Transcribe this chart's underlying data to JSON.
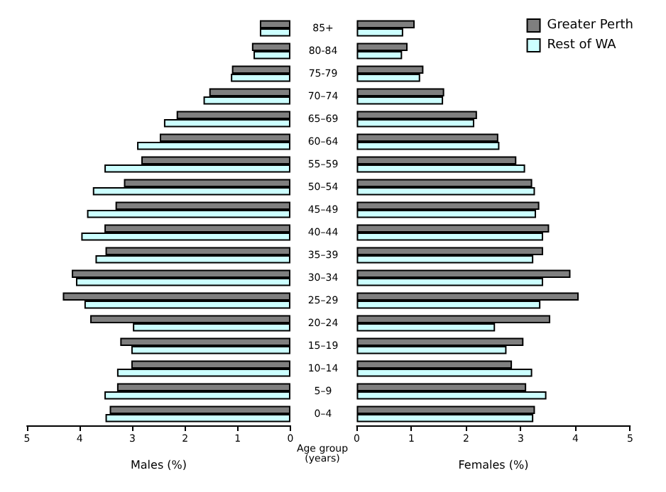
{
  "chart_data": [
    {
      "type": "bar",
      "orientation": "horizontal",
      "xlabel": "Males (%)",
      "ylabel": "Age group\n(years)",
      "categories": [
        "85+",
        "80-84",
        "75-79",
        "70–74",
        "65–69",
        "60–64",
        "55–59",
        "50–54",
        "45–49",
        "40–44",
        "35–39",
        "30–34",
        "25–29",
        "20–24",
        "15–19",
        "10–14",
        "5–9",
        "0–4"
      ],
      "series": [
        {
          "color": "#7f7f7f",
          "values": [
            0.58,
            0.73,
            1.11,
            1.54,
            2.16,
            2.48,
            2.83,
            3.16,
            3.32,
            3.53,
            3.51,
            4.15,
            4.32,
            3.8,
            3.23,
            3.02,
            3.29,
            3.43
          ]
        },
        {
          "color": "#ccffff",
          "values": [
            0.58,
            0.7,
            1.13,
            1.65,
            2.4,
            2.91,
            3.53,
            3.75,
            3.86,
            3.97,
            3.7,
            4.07,
            3.91,
            2.99,
            3.02,
            3.29,
            3.53,
            3.51
          ]
        }
      ],
      "xlim": [
        5,
        0
      ],
      "xticks": [
        5,
        4,
        3,
        2,
        1,
        0
      ],
      "grid": false,
      "legend": false
    },
    {
      "type": "bar",
      "orientation": "horizontal",
      "xlabel": "Females (%)",
      "categories": [
        null,
        null,
        null,
        null,
        null,
        null,
        null,
        null,
        null,
        null,
        null,
        null,
        null,
        null,
        null,
        null,
        null,
        null
      ],
      "series": [
        {
          "name": "Greater Perth",
          "color": "#7f7f7f",
          "values": [
            1.06,
            0.93,
            1.22,
            1.6,
            2.2,
            2.59,
            2.92,
            3.21,
            3.34,
            3.52,
            3.41,
            3.91,
            4.06,
            3.54,
            3.05,
            2.84,
            3.1,
            3.26
          ]
        },
        {
          "name": "Rest of WA",
          "color": "#ccffff",
          "values": [
            0.85,
            0.83,
            1.16,
            1.58,
            2.15,
            2.61,
            3.08,
            3.26,
            3.28,
            3.41,
            3.23,
            3.41,
            3.36,
            2.53,
            2.74,
            3.21,
            3.47,
            3.23
          ]
        }
      ],
      "xlim": [
        0,
        5
      ],
      "xticks": [
        0,
        1,
        2,
        3,
        4,
        5
      ],
      "tick_labels": "x",
      "grid": false,
      "legend": "top right"
    }
  ]
}
